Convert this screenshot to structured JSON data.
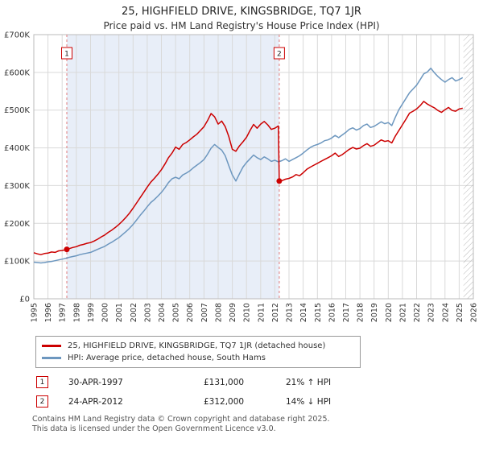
{
  "header": {
    "title": "25, HIGHFIELD DRIVE, KINGSBRIDGE, TQ7 1JR",
    "subtitle": "Price paid vs. HM Land Registry's House Price Index (HPI)"
  },
  "legend": {
    "items": [
      {
        "label": "25, HIGHFIELD DRIVE, KINGSBRIDGE, TQ7 1JR (detached house)",
        "color": "#cc0000"
      },
      {
        "label": "HPI: Average price, detached house, South Hams",
        "color": "#6d97bf"
      }
    ]
  },
  "footer": {
    "line1": "Contains HM Land Registry data © Crown copyright and database right 2025.",
    "line2": "This data is licensed under the Open Government Licence v3.0."
  },
  "chart_data": {
    "type": "line",
    "title": "Price paid vs. HM Land Registry's House Price Index (HPI)",
    "y_units": "GBP thousands",
    "xlim": [
      1995,
      2026
    ],
    "ylim": [
      0,
      700
    ],
    "ytick_step": 100,
    "ytick_labels": [
      "£0",
      "£100K",
      "£200K",
      "£300K",
      "£400K",
      "£500K",
      "£600K",
      "£700K"
    ],
    "shaded_region": [
      1997.33,
      2012.31
    ],
    "hatched_region": [
      2025.3,
      2026
    ],
    "colors": {
      "red": "#cc0000",
      "blue": "#6d97bf",
      "shade": "#e8eef8",
      "grid": "#d9d9d9",
      "border": "#bbbbbb",
      "hatch": "#b8b8b8",
      "sale_line": "#e07b7b"
    },
    "sales": [
      {
        "label": "1",
        "x": 1997.33,
        "y": 131,
        "date": "30-APR-1997",
        "price": "£131,000",
        "vs_hpi": "21% ↑ HPI"
      },
      {
        "label": "2",
        "x": 2012.31,
        "y": 312,
        "date": "24-APR-2012",
        "price": "£312,000",
        "vs_hpi": "14% ↓ HPI"
      }
    ],
    "series": [
      {
        "name": "hpi-south-hams-detached",
        "color": "#6d97bf",
        "x_start": 1995,
        "x_step": 0.25,
        "y": [
          97,
          96,
          95,
          96,
          98,
          99,
          101,
          103,
          105,
          107,
          110,
          112,
          114,
          117,
          119,
          121,
          123,
          127,
          131,
          135,
          139,
          145,
          150,
          156,
          162,
          170,
          178,
          187,
          197,
          209,
          221,
          232,
          244,
          255,
          263,
          272,
          282,
          294,
          308,
          318,
          322,
          318,
          328,
          333,
          339,
          347,
          354,
          361,
          369,
          383,
          399,
          409,
          401,
          394,
          379,
          353,
          328,
          312,
          331,
          349,
          361,
          371,
          381,
          374,
          369,
          376,
          371,
          364,
          367,
          363,
          366,
          371,
          364,
          369,
          374,
          379,
          386,
          394,
          401,
          406,
          409,
          413,
          419,
          421,
          426,
          433,
          427,
          434,
          441,
          449,
          453,
          447,
          451,
          459,
          463,
          454,
          457,
          463,
          469,
          464,
          467,
          459,
          481,
          501,
          516,
          531,
          546,
          556,
          566,
          581,
          596,
          601,
          611,
          599,
          589,
          581,
          574,
          581,
          586,
          577,
          581,
          586
        ]
      },
      {
        "name": "price-paid-25-highfield-drive",
        "color": "#cc0000",
        "x": [
          1995,
          1995.25,
          1995.5,
          1995.75,
          1996,
          1996.25,
          1996.5,
          1996.75,
          1997,
          1997.25,
          1997.5,
          1997.75,
          1998,
          1998.25,
          1998.5,
          1998.75,
          1999,
          1999.25,
          1999.5,
          1999.75,
          2000,
          2000.25,
          2000.5,
          2000.75,
          2001,
          2001.25,
          2001.5,
          2001.75,
          2002,
          2002.25,
          2002.5,
          2002.75,
          2003,
          2003.25,
          2003.5,
          2003.75,
          2004,
          2004.25,
          2004.5,
          2004.75,
          2005,
          2005.25,
          2005.5,
          2005.75,
          2006,
          2006.25,
          2006.5,
          2006.75,
          2007,
          2007.25,
          2007.5,
          2007.75,
          2008,
          2008.25,
          2008.5,
          2008.75,
          2009,
          2009.25,
          2009.5,
          2009.75,
          2010,
          2010.25,
          2010.5,
          2010.75,
          2011,
          2011.25,
          2011.5,
          2011.75,
          2012,
          2012.25,
          2012.31,
          2012.5,
          2012.75,
          2013,
          2013.25,
          2013.5,
          2013.75,
          2014,
          2014.25,
          2014.5,
          2014.75,
          2015,
          2015.25,
          2015.5,
          2015.75,
          2016,
          2016.25,
          2016.5,
          2016.75,
          2017,
          2017.25,
          2017.5,
          2017.75,
          2018,
          2018.25,
          2018.5,
          2018.75,
          2019,
          2019.25,
          2019.5,
          2019.75,
          2020,
          2020.25,
          2020.5,
          2020.75,
          2021,
          2021.25,
          2021.5,
          2021.75,
          2022,
          2022.25,
          2022.5,
          2022.75,
          2023,
          2023.25,
          2023.5,
          2023.75,
          2024,
          2024.25,
          2024.5,
          2024.75,
          2025,
          2025.25
        ],
        "y": [
          122,
          119,
          117,
          120,
          121,
          124,
          123,
          127,
          128,
          130,
          133,
          136,
          138,
          142,
          144,
          147,
          149,
          153,
          158,
          164,
          169,
          176,
          182,
          189,
          197,
          206,
          216,
          227,
          240,
          254,
          268,
          282,
          296,
          309,
          319,
          330,
          342,
          357,
          374,
          386,
          402,
          396,
          409,
          414,
          421,
          429,
          436,
          446,
          456,
          472,
          491,
          482,
          463,
          471,
          456,
          430,
          396,
          391,
          405,
          416,
          428,
          446,
          462,
          452,
          463,
          470,
          461,
          449,
          452,
          458,
          312,
          313,
          317,
          319,
          323,
          329,
          326,
          334,
          343,
          349,
          354,
          359,
          364,
          369,
          374,
          379,
          386,
          377,
          382,
          389,
          396,
          401,
          397,
          399,
          406,
          411,
          404,
          407,
          414,
          421,
          417,
          419,
          413,
          431,
          446,
          461,
          476,
          492,
          497,
          503,
          512,
          523,
          516,
          511,
          506,
          499,
          494,
          501,
          507,
          499,
          497,
          503,
          505
        ]
      }
    ]
  }
}
